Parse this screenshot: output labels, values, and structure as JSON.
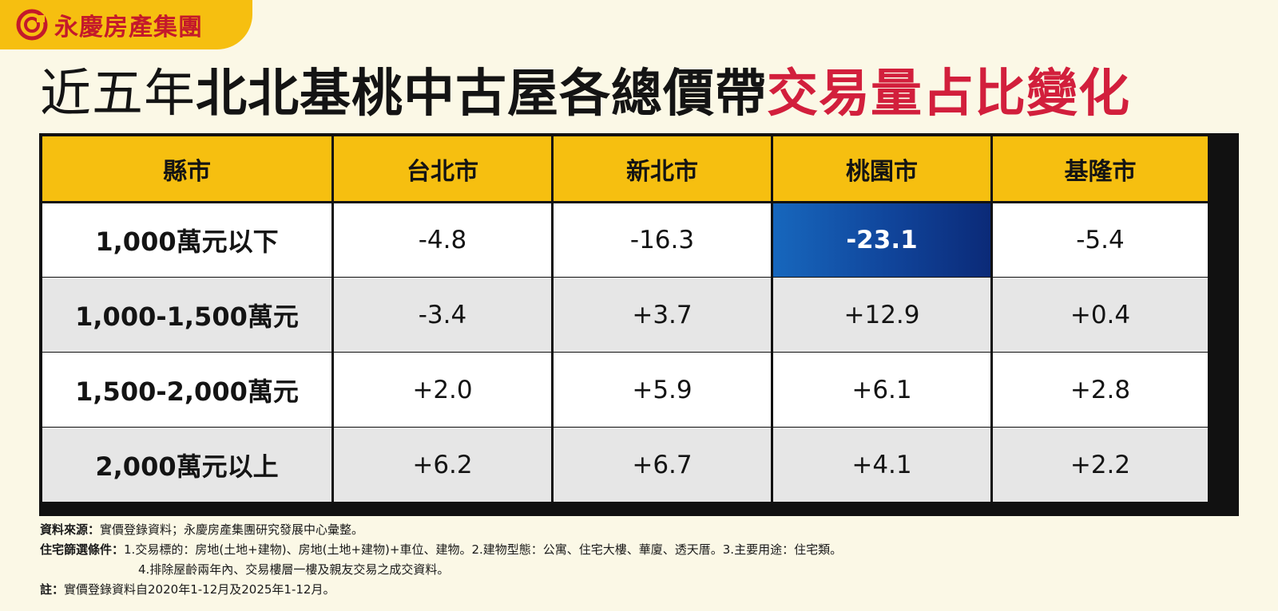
{
  "brand": {
    "name": "永慶房產集團",
    "icon": "yungching-logo-icon"
  },
  "title": {
    "part1": "近五年",
    "part2": "北北基桃中古屋各總價帶",
    "part3": "交易量占比變化"
  },
  "colors": {
    "accent_yellow": "#f6bf10",
    "title_red": "#d21f3c",
    "highlight_blue": "#10449a",
    "brand_red": "#c4192b"
  },
  "chart_data": {
    "type": "table",
    "title": "近五年北北基桃中古屋各總價帶交易量占比變化",
    "columns": [
      "縣市",
      "台北市",
      "新北市",
      "桃園市",
      "基隆市"
    ],
    "rows": [
      {
        "label": "1,000萬元以下",
        "values": [
          "-4.8",
          "-16.3",
          "-23.1",
          "-5.4"
        ]
      },
      {
        "label": "1,000-1,500萬元",
        "values": [
          "-3.4",
          "+3.7",
          "+12.9",
          "+0.4"
        ]
      },
      {
        "label": "1,500-2,000萬元",
        "values": [
          "+2.0",
          "+5.9",
          "+6.1",
          "+2.8"
        ]
      },
      {
        "label": "2,000萬元以上",
        "values": [
          "+6.2",
          "+6.7",
          "+4.1",
          "+2.2"
        ]
      }
    ],
    "highlight": {
      "row": 0,
      "col": 2
    }
  },
  "notes": {
    "source_label": "資料來源：",
    "source_text": "實價登錄資料；永慶房產集團研究發展中心彙整。",
    "criteria_label": "住宅篩選條件：",
    "criteria_text_1": "1.交易標的：房地(土地+建物)、房地(土地+建物)+車位、建物。2.建物型態：公寓、住宅大樓、華廈、透天厝。3.主要用途：住宅類。",
    "criteria_text_2": "4.排除屋齡兩年內、交易樓層一樓及親友交易之成交資料。",
    "remark_label": "註：",
    "remark_text": "實價登錄資料自2020年1-12月及2025年1-12月。"
  }
}
